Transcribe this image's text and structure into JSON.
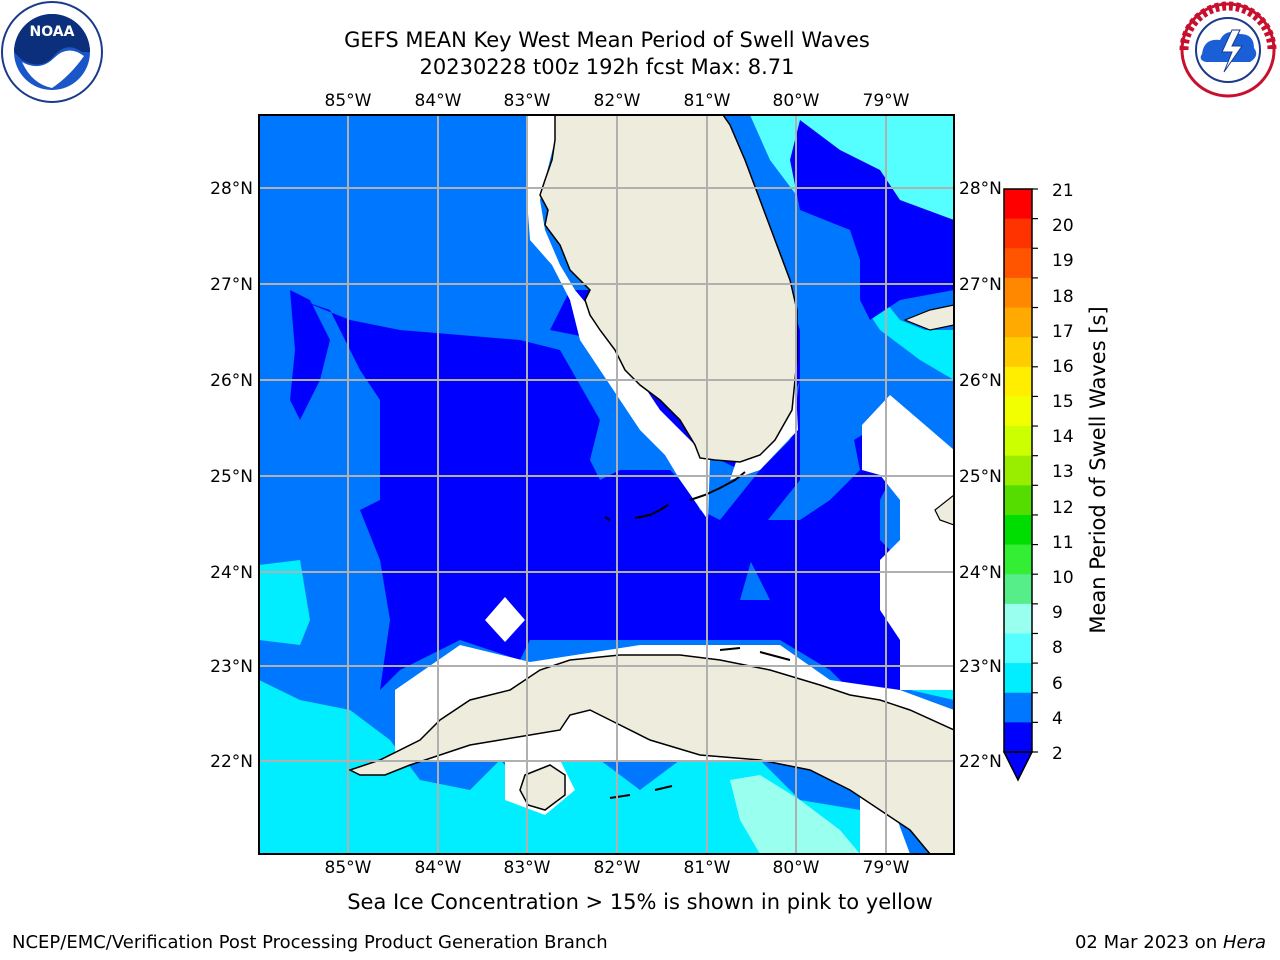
{
  "title_line1": "GEFS MEAN Key West Mean Period of Swell Waves",
  "title_line2": "20230228 t00z 192h fcst   Max: 8.71",
  "logos": {
    "left": {
      "name": "NOAA logo",
      "text": "NOAA",
      "ring_text": "NATIONAL OCEANIC AND ATMOSPHERIC ADMINISTRATION · U.S. DEPARTMENT OF COMMERCE"
    },
    "right": {
      "name": "National Weather Service logo",
      "ring_text": "NATIONAL WEATHER SERVICE"
    }
  },
  "map": {
    "lon_labels_top": [
      "85°W",
      "84°W",
      "83°W",
      "82°W",
      "81°W",
      "80°W",
      "79°W"
    ],
    "lon_labels_bottom": [
      "85°W",
      "84°W",
      "83°W",
      "82°W",
      "81°W",
      "80°W",
      "79°W"
    ],
    "lat_labels_left": [
      "28°N",
      "27°N",
      "26°N",
      "25°N",
      "24°N",
      "23°N",
      "22°N"
    ],
    "lat_labels_right": [
      "28°N",
      "27°N",
      "26°N",
      "25°N",
      "24°N",
      "23°N",
      "22°N"
    ],
    "land_color": "#eeecdc",
    "grid_color": "#b0b0b0"
  },
  "colorbar": {
    "label": "Mean Period of Swell Waves [s]",
    "ticks": [
      "21",
      "20",
      "19",
      "18",
      "17",
      "16",
      "15",
      "14",
      "13",
      "12",
      "11",
      "10",
      "9",
      "8",
      "6",
      "4",
      "2"
    ],
    "colors": [
      "#ff0000",
      "#ff3300",
      "#ff5500",
      "#ff8800",
      "#ffaa00",
      "#ffcc00",
      "#ffee00",
      "#f2ff00",
      "#ccff00",
      "#99ee00",
      "#55dd00",
      "#00dd00",
      "#33ee33",
      "#55ee88",
      "#99ffee",
      "#55ffff",
      "#00eeff",
      "#0077ff",
      "#0000ff"
    ]
  },
  "sea_ice_note": "Sea Ice Concentration > 15% is shown in pink to yellow",
  "footer_left": "NCEP/EMC/Verification Post Processing Product Generation Branch",
  "footer_date": "02 Mar 2023 on ",
  "footer_host": "Hera"
}
